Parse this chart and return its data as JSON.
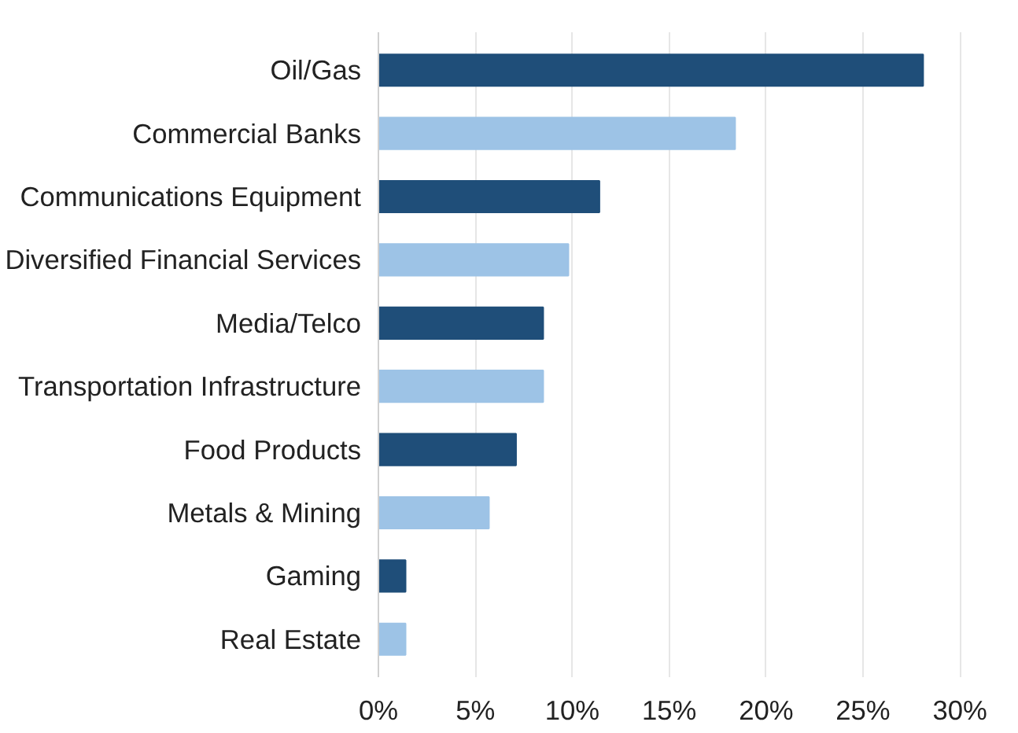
{
  "chart_data": {
    "type": "bar",
    "orientation": "horizontal",
    "categories": [
      "Oil/Gas",
      "Commercial Banks",
      "Communications Equipment",
      "Diversified Financial Services",
      "Media/Telco",
      "Transportation Infrastructure",
      "Food Products",
      "Metals & Mining",
      "Gaming",
      "Real Estate"
    ],
    "values": [
      28.1,
      18.4,
      11.4,
      9.8,
      8.5,
      8.5,
      7.1,
      5.7,
      1.4,
      1.4
    ],
    "colors": [
      "#1f4e79",
      "#9dc3e6",
      "#1f4e79",
      "#9dc3e6",
      "#1f4e79",
      "#9dc3e6",
      "#1f4e79",
      "#9dc3e6",
      "#1f4e79",
      "#9dc3e6"
    ],
    "xlim": [
      0,
      30
    ],
    "xticks": [
      {
        "value": 0,
        "label": "0%"
      },
      {
        "value": 5,
        "label": "5%"
      },
      {
        "value": 10,
        "label": "10%"
      },
      {
        "value": 15,
        "label": "15%"
      },
      {
        "value": 20,
        "label": "20%"
      },
      {
        "value": 25,
        "label": "25%"
      },
      {
        "value": 30,
        "label": "30%"
      }
    ],
    "grid": "x"
  }
}
